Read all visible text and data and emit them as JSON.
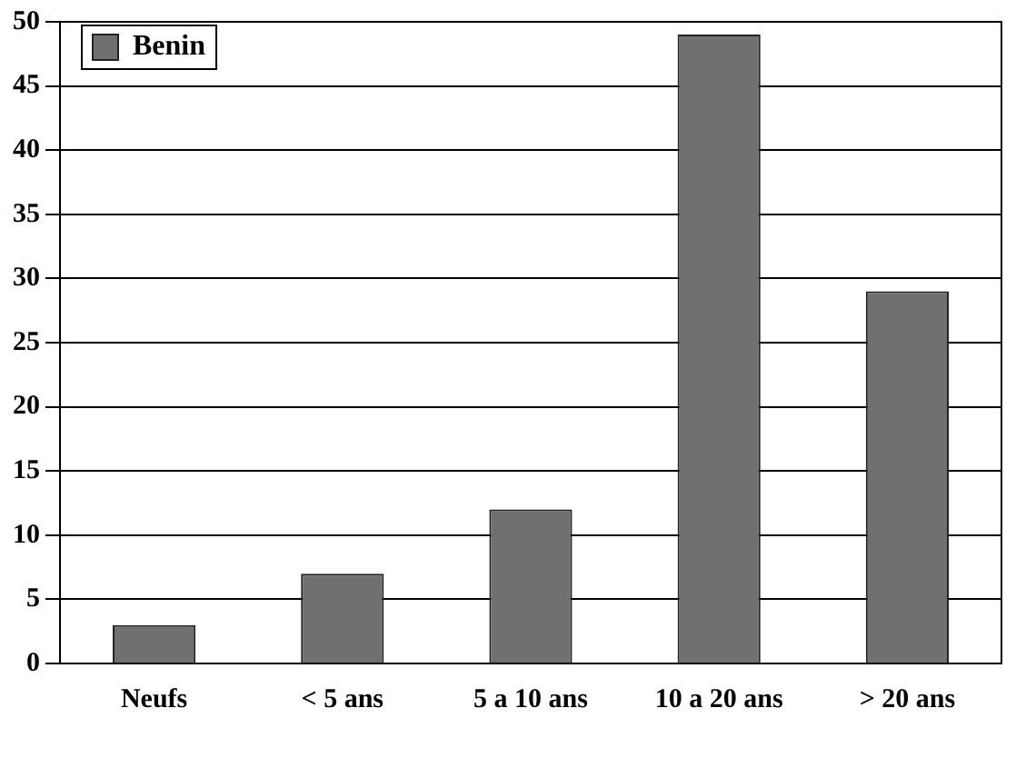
{
  "chart_data": {
    "type": "bar",
    "categories": [
      "Neufs",
      "< 5 ans",
      "5 a 10 ans",
      "10 a 20 ans",
      "> 20 ans"
    ],
    "series": [
      {
        "name": "Benin",
        "color": "#707070",
        "values": [
          3,
          7,
          12,
          49,
          29
        ]
      }
    ],
    "ylim": [
      0,
      50
    ],
    "yticks": [
      0,
      5,
      10,
      15,
      20,
      25,
      30,
      35,
      40,
      45,
      50
    ],
    "grid": "y",
    "legend": "top left"
  }
}
